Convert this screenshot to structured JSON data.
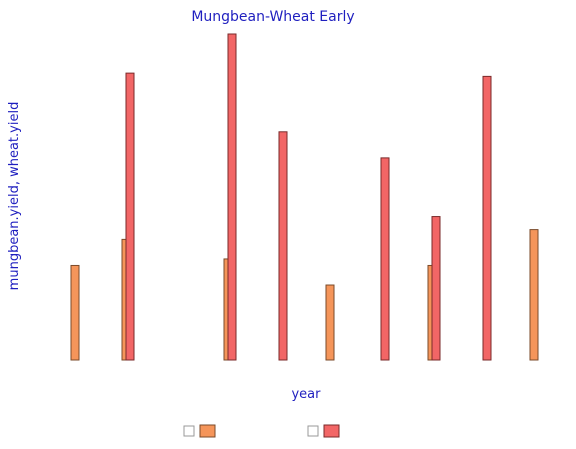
{
  "chart_data": {
    "type": "bar",
    "title": "Mungbean-Wheat Early",
    "xlabel": "year",
    "ylabel": "mungbean.yield, wheat.yield",
    "ylim": [
      0,
      1
    ],
    "grid": false,
    "legend_position": "bottom",
    "series": [
      {
        "color": "#f5955a",
        "values": [
          0.29,
          0.37,
          null,
          0.31,
          null,
          0.23,
          null,
          0.29,
          null,
          0.4
        ]
      },
      {
        "color": "#f26666",
        "values": [
          null,
          0.88,
          null,
          1.0,
          0.7,
          null,
          0.62,
          0.44,
          0.87,
          null
        ]
      }
    ]
  }
}
